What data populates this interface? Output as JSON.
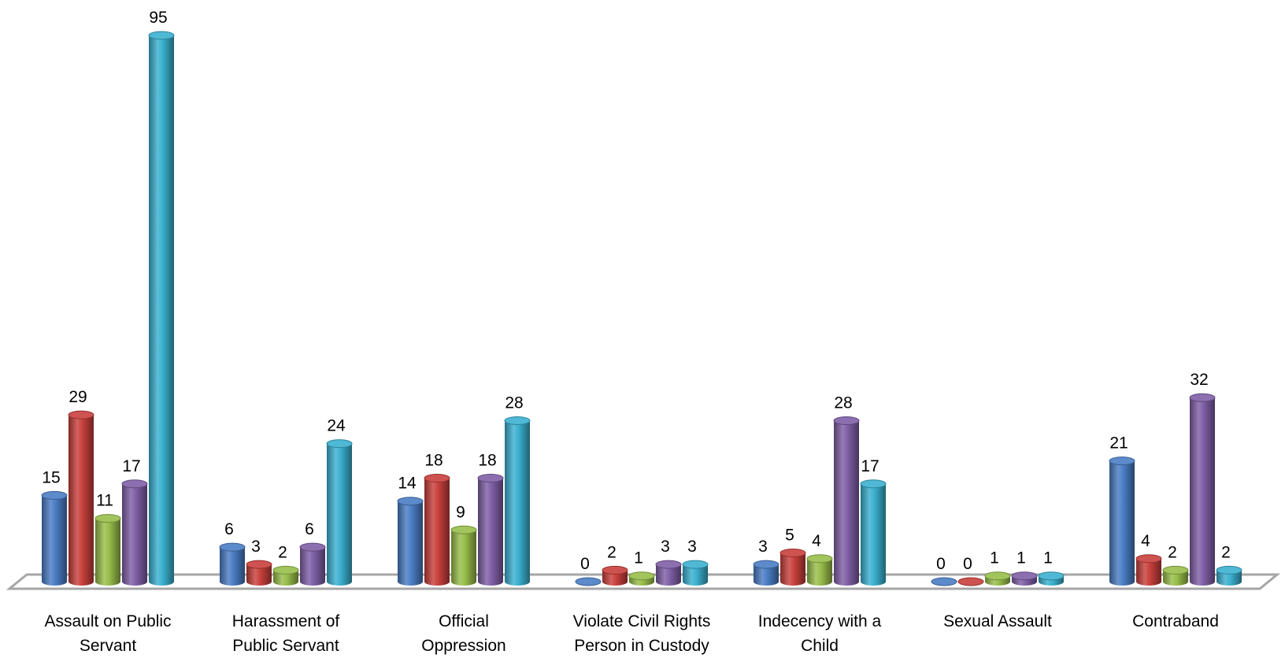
{
  "chart_data": {
    "type": "bar",
    "title": "",
    "xlabel": "",
    "ylabel": "",
    "ylim": [
      0,
      95
    ],
    "grid": false,
    "legend": "none",
    "categories": [
      [
        "Assault on Public",
        "Servant"
      ],
      [
        "Harassment of",
        "Public Servant"
      ],
      [
        "Official",
        "Oppression"
      ],
      [
        "Violate Civil Rights",
        "Person in Custody"
      ],
      [
        "Indecency with a",
        "Child"
      ],
      [
        "Sexual Assault"
      ],
      [
        "Contraband"
      ]
    ],
    "series": [
      {
        "color": "#4a7dc4",
        "values": [
          15,
          6,
          14,
          0,
          3,
          0,
          21
        ]
      },
      {
        "color": "#c8403c",
        "values": [
          29,
          3,
          18,
          2,
          5,
          0,
          4
        ]
      },
      {
        "color": "#98bd4a",
        "values": [
          11,
          2,
          9,
          1,
          4,
          1,
          2
        ]
      },
      {
        "color": "#7f5fa6",
        "values": [
          17,
          6,
          18,
          3,
          28,
          1,
          32
        ]
      },
      {
        "color": "#3bb0cf",
        "values": [
          95,
          24,
          28,
          3,
          17,
          1,
          2
        ]
      }
    ]
  }
}
